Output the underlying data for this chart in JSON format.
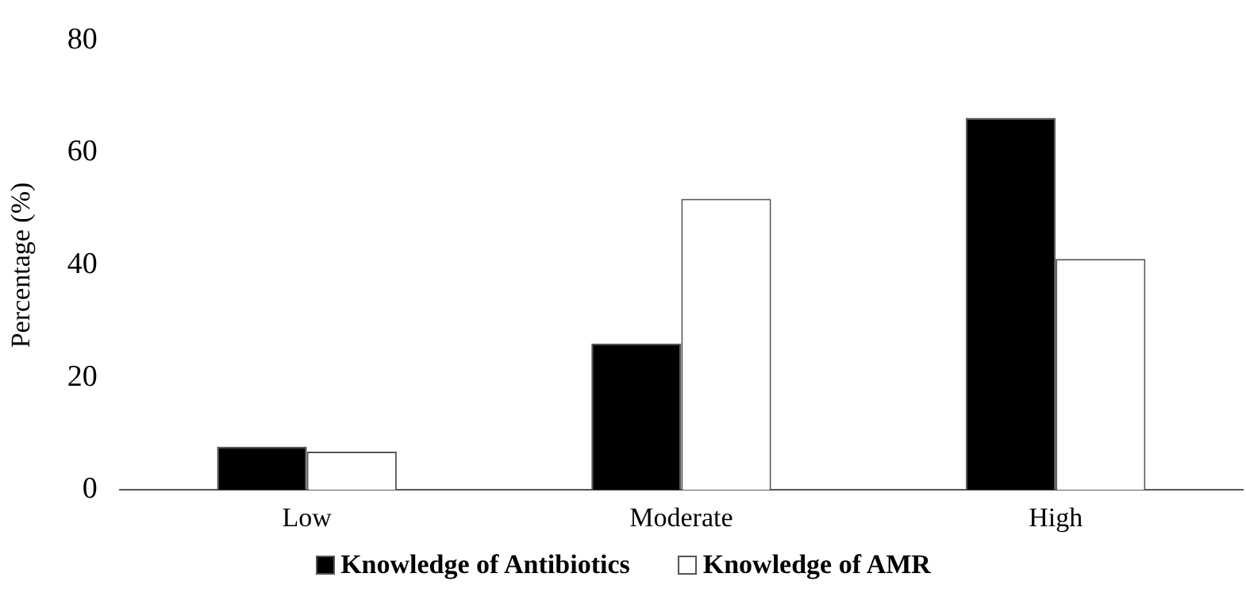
{
  "chart_data": {
    "type": "bar",
    "ylabel": "Percentage (%)",
    "categories": [
      "Low",
      "Moderate",
      "High"
    ],
    "series": [
      {
        "name": "Knowledge of Antibiotics",
        "color": "#000000",
        "values": [
          7.7,
          26.0,
          66.2
        ]
      },
      {
        "name": "Knowledge of AMR",
        "color": "#ffffff",
        "values": [
          6.8,
          51.8,
          41.1
        ]
      }
    ],
    "ylim": [
      0,
      80
    ],
    "yticks": [
      0,
      20,
      40,
      60,
      80
    ],
    "grid": false,
    "legend": "bottom"
  }
}
